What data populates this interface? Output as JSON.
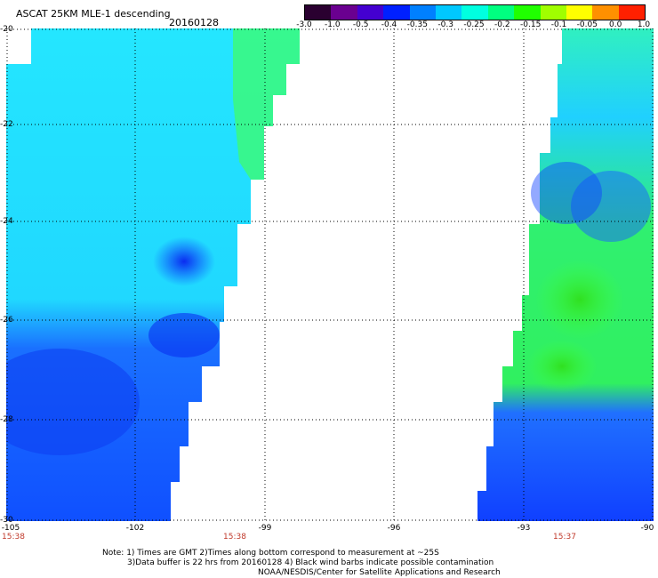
{
  "header": {
    "title": "ASCAT 25KM MLE-1 descending",
    "date": "20160128"
  },
  "colorbar": {
    "labels": [
      "-3.0",
      "-1.0",
      "-0.5",
      "-0.4",
      "-0.35",
      "-0.3",
      "-0.25",
      "-0.2",
      "-0.15",
      "-0.1",
      "-0.05",
      "0.0",
      "1.0"
    ],
    "colors": [
      "#2a0030",
      "#6a0090",
      "#4400d0",
      "#0020ff",
      "#0080ff",
      "#00c8ff",
      "#00ffe0",
      "#00ff80",
      "#20ff00",
      "#a0ff00",
      "#ffff00",
      "#ff9000",
      "#ff2000"
    ]
  },
  "map": {
    "lat_labels": [
      "-20",
      "-22",
      "-24",
      "-26",
      "-28",
      "-30"
    ],
    "lon_labels": [
      "-105",
      "-102",
      "-99",
      "-96",
      "-93",
      "-90"
    ],
    "times": [
      "15:38",
      "15:38",
      "15:37"
    ]
  },
  "footer": {
    "line1": "Note: 1) Times are GMT 2)Times along bottom correspond to measurement at ~25S",
    "line2": "3)Data buffer is 22 hrs from 20160128 4) Black wind barbs indicate possible contamination",
    "line3": "NOAA/NESDIS/Center for Satellite Applications and Research"
  }
}
